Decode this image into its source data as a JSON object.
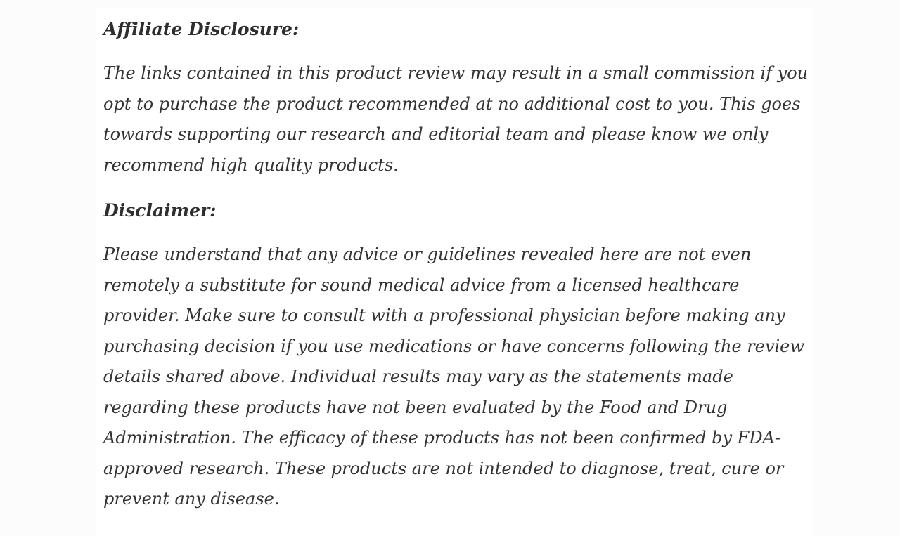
{
  "article": {
    "affiliate": {
      "heading": "Affiliate Disclosure:",
      "body": "The links contained in this product review may result in a small commission if you opt to purchase the product recommended at no additional cost to you. This goes towards supporting our research and editorial team and please know we only recommend high quality products."
    },
    "disclaimer": {
      "heading": "Disclaimer:",
      "body": "Please understand that any advice or guidelines revealed here are not even remotely a substitute for sound medical advice from a licensed healthcare provider. Make sure to consult with a professional physician before making any purchasing decision if you use medications or have concerns following the review details shared above. Individual results may vary as the statements made regarding these products have not been evaluated by the Food and Drug Administration. The efficacy of these products has not been confirmed by FDA-approved research. These products are not intended to diagnose, treat, cure or prevent any disease."
    }
  },
  "colors": {
    "text": "#333333",
    "heading": "#2e2e2e",
    "page_background": "#fcfcfc",
    "panel_background": "#ffffff"
  }
}
